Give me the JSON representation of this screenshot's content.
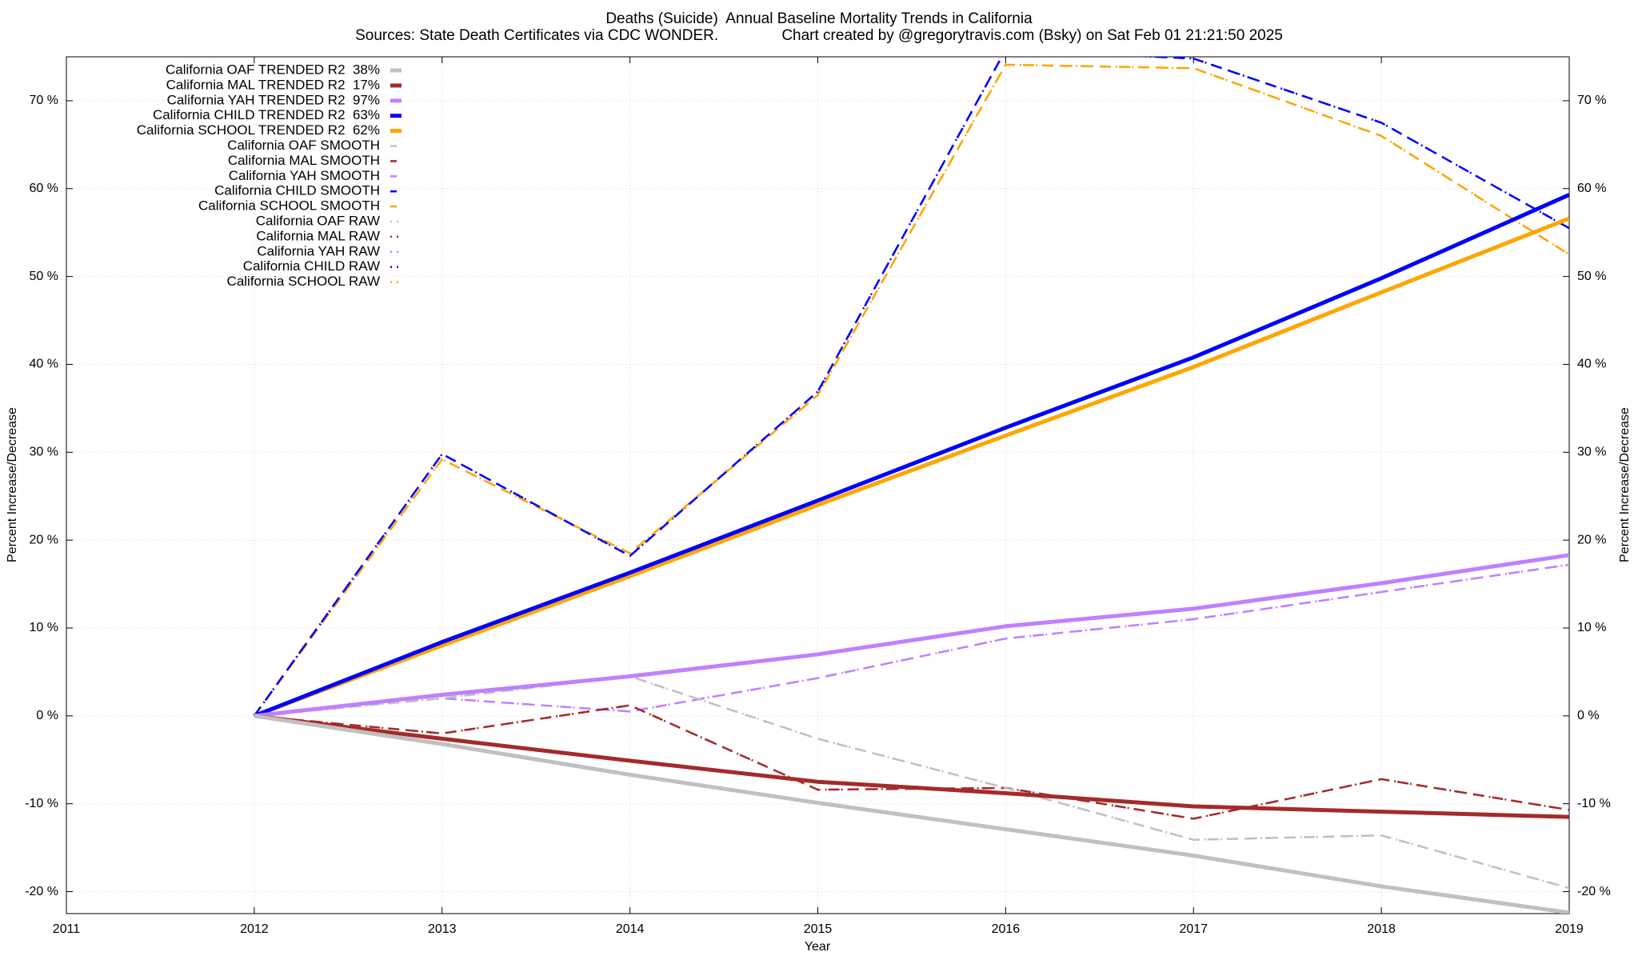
{
  "chart_data": {
    "type": "line",
    "title": "Deaths (Suicide)  Annual Baseline Mortality Trends in California",
    "subtitle": "Sources: State Death Certificates via CDC WONDER.               Chart created by @gregorytravis.com (Bsky) on Sat Feb 01 21:21:50 2025",
    "xlabel": "Year",
    "ylabel": "Percent Increase/Decrease",
    "x": [
      2012,
      2013,
      2014,
      2015,
      2016,
      2017,
      2018,
      2019
    ],
    "xlim": [
      2011,
      2019
    ],
    "xticks": [
      2011,
      2012,
      2013,
      2014,
      2015,
      2016,
      2017,
      2018,
      2019
    ],
    "ylim": [
      -22.5,
      75
    ],
    "yticks": [
      {
        "value": -20,
        "label": "-20 %"
      },
      {
        "value": -10,
        "label": "-10 %"
      },
      {
        "value": 0,
        "label": "0 %"
      },
      {
        "value": 10,
        "label": "10 %"
      },
      {
        "value": 20,
        "label": "20 %"
      },
      {
        "value": 30,
        "label": "30 %"
      },
      {
        "value": 40,
        "label": "40 %"
      },
      {
        "value": 50,
        "label": "50 %"
      },
      {
        "value": 60,
        "label": "60 %"
      },
      {
        "value": 70,
        "label": "70 %"
      }
    ],
    "grid": true,
    "legend": "top-left",
    "series": [
      {
        "name": "California OAF TRENDED R2  38%",
        "color": "#c0c0c0",
        "style": "solid",
        "values": [
          0,
          -3.2,
          -6.7,
          -9.9,
          -12.9,
          -15.9,
          -19.4,
          -22.4
        ]
      },
      {
        "name": "California MAL TRENDED R2  17%",
        "color": "#a52a2a",
        "style": "solid",
        "values": [
          0,
          -2.6,
          -5.1,
          -7.5,
          -8.8,
          -10.3,
          -10.9,
          -11.5
        ]
      },
      {
        "name": "California YAH TRENDED R2  97%",
        "color": "#c080ff",
        "style": "solid",
        "values": [
          0,
          2.4,
          4.5,
          7.0,
          10.2,
          12.2,
          15.1,
          18.3
        ]
      },
      {
        "name": "California CHILD TRENDED R2  63%",
        "color": "#0000ff",
        "style": "solid",
        "values": [
          0,
          8.4,
          16.3,
          24.5,
          32.8,
          40.8,
          49.8,
          59.3
        ]
      },
      {
        "name": "California SCHOOL TRENDED R2  62%",
        "color": "#ffa500",
        "style": "solid",
        "values": [
          0,
          8.0,
          15.9,
          24.0,
          31.9,
          39.7,
          48.2,
          56.6
        ]
      },
      {
        "name": "California OAF SMOOTH",
        "color": "#c0c0c0",
        "style": "dashed",
        "values": [
          0,
          2.0,
          4.5,
          -2.6,
          -8.2,
          -14.1,
          -13.6,
          -19.6
        ]
      },
      {
        "name": "California MAL SMOOTH",
        "color": "#a52a2a",
        "style": "dashed",
        "values": [
          0,
          -2.0,
          1.2,
          -8.4,
          -8.2,
          -11.7,
          -7.2,
          -10.7
        ]
      },
      {
        "name": "California YAH SMOOTH",
        "color": "#c080ff",
        "style": "dashed",
        "values": [
          0,
          2.0,
          0.5,
          4.3,
          8.8,
          11.0,
          14.1,
          17.2
        ]
      },
      {
        "name": "California CHILD SMOOTH",
        "color": "#0000ff",
        "style": "dashed",
        "values": [
          0,
          29.8,
          18.2,
          36.9,
          75.8,
          74.8,
          67.5,
          55.5
        ]
      },
      {
        "name": "California SCHOOL SMOOTH",
        "color": "#ffa500",
        "style": "dashed",
        "values": [
          0,
          29.2,
          18.5,
          36.5,
          74.1,
          73.7,
          66.0,
          52.5
        ]
      },
      {
        "name": "California OAF RAW",
        "color": "#c0c0c0",
        "style": "dotted",
        "values": [
          0,
          2.0,
          4.5,
          -2.6,
          -8.2,
          -14.1,
          -13.6,
          -19.6
        ]
      },
      {
        "name": "California MAL RAW",
        "color": "#a52a2a",
        "style": "dotted",
        "values": [
          0,
          -2.0,
          1.2,
          -8.4,
          -8.2,
          -11.7,
          -7.2,
          -10.7
        ]
      },
      {
        "name": "California YAH RAW",
        "color": "#c080ff",
        "style": "dotted",
        "values": [
          0,
          2.0,
          0.5,
          4.3,
          8.8,
          11.0,
          14.1,
          17.2
        ]
      },
      {
        "name": "California CHILD RAW",
        "color": "#0000ff",
        "style": "dotted",
        "values": [
          0,
          29.8,
          18.2,
          36.9,
          75.8,
          74.8,
          67.5,
          55.5
        ]
      },
      {
        "name": "California SCHOOL RAW",
        "color": "#ffa500",
        "style": "dotted",
        "values": [
          0,
          29.2,
          18.5,
          36.5,
          74.1,
          73.7,
          66.0,
          52.5
        ]
      }
    ]
  }
}
